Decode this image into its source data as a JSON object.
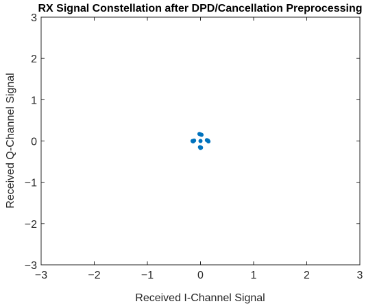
{
  "chart_data": {
    "type": "scatter",
    "title": "RX Signal Constellation after DPD/Cancellation Preprocessing",
    "xlabel": "Received I-Channel Signal",
    "ylabel": "Received Q-Channel Signal",
    "xlim": [
      -3,
      3
    ],
    "ylim": [
      -3,
      3
    ],
    "xticks": [
      -3,
      -2,
      -1,
      0,
      1,
      2,
      3
    ],
    "yticks": [
      -3,
      -2,
      -1,
      0,
      1,
      2,
      3
    ],
    "xtick_labels": [
      "−3",
      "−2",
      "−1",
      "0",
      "1",
      "2",
      "3"
    ],
    "ytick_labels": [
      "−3",
      "−2",
      "−1",
      "0",
      "1",
      "2",
      "3"
    ],
    "grid": false,
    "marker_color": "#0072BD",
    "points": [
      {
        "x": 0.0,
        "y": 0.16
      },
      {
        "x": -0.02,
        "y": 0.17
      },
      {
        "x": 0.02,
        "y": 0.15
      },
      {
        "x": -0.14,
        "y": -0.01
      },
      {
        "x": -0.12,
        "y": 0.01
      },
      {
        "x": -0.15,
        "y": 0.0
      },
      {
        "x": 0.14,
        "y": 0.01
      },
      {
        "x": 0.12,
        "y": 0.02
      },
      {
        "x": 0.15,
        "y": -0.01
      },
      {
        "x": 0.01,
        "y": -0.16
      },
      {
        "x": -0.01,
        "y": -0.15
      },
      {
        "x": 0.0,
        "y": -0.17
      },
      {
        "x": 0.0,
        "y": 0.0
      }
    ]
  }
}
